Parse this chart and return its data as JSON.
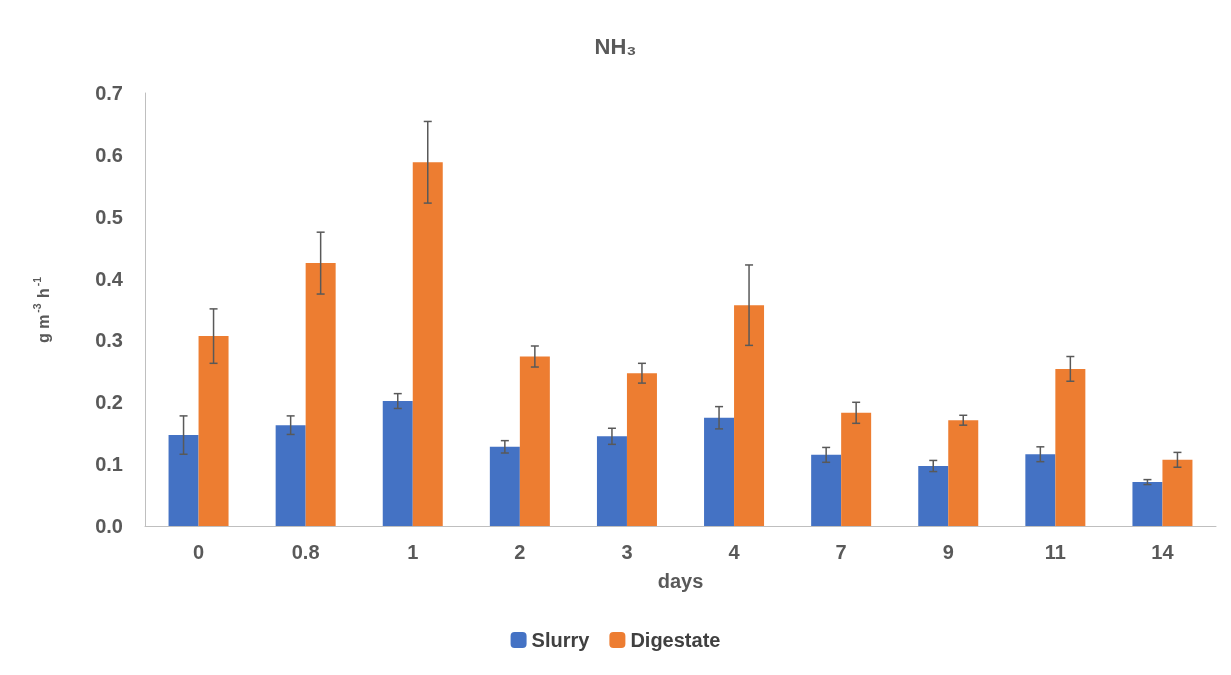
{
  "chart_data": {
    "type": "bar",
    "title": "NH₃",
    "xlabel": "days",
    "ylabel": "g m$^{-3}$ h$^{-1}$",
    "categories": [
      "0",
      "0.8",
      "1",
      "2",
      "3",
      "4",
      "7",
      "9",
      "11",
      "14"
    ],
    "series": [
      {
        "name": "Slurry",
        "color": "#4472c4",
        "values": [
          0.147,
          0.163,
          0.202,
          0.128,
          0.145,
          0.175,
          0.115,
          0.097,
          0.116,
          0.071
        ],
        "errors": [
          0.031,
          0.015,
          0.012,
          0.01,
          0.013,
          0.018,
          0.012,
          0.009,
          0.012,
          0.004
        ]
      },
      {
        "name": "Digestate",
        "color": "#ed7d31",
        "values": [
          0.307,
          0.425,
          0.588,
          0.274,
          0.247,
          0.357,
          0.183,
          0.171,
          0.254,
          0.107
        ],
        "errors": [
          0.044,
          0.05,
          0.066,
          0.017,
          0.016,
          0.065,
          0.017,
          0.008,
          0.02,
          0.012
        ]
      }
    ],
    "ylim": [
      0,
      0.7
    ],
    "yticks": [
      {
        "value": 0,
        "label": "0.0"
      },
      0.1,
      0.2,
      0.3,
      0.4,
      0.5,
      0.6,
      0.7
    ],
    "grid": false,
    "legend": "bottom"
  }
}
